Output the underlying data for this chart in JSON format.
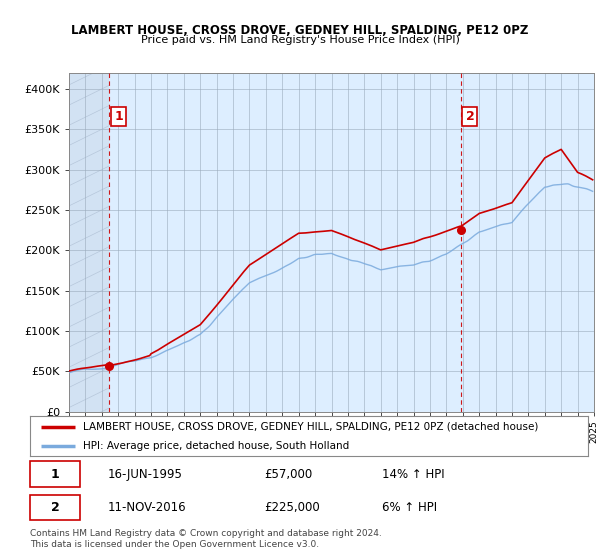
{
  "title1": "LAMBERT HOUSE, CROSS DROVE, GEDNEY HILL, SPALDING, PE12 0PZ",
  "title2": "Price paid vs. HM Land Registry's House Price Index (HPI)",
  "ylim": [
    0,
    420000
  ],
  "yticks": [
    0,
    50000,
    100000,
    150000,
    200000,
    250000,
    300000,
    350000,
    400000
  ],
  "ytick_labels": [
    "£0",
    "£50K",
    "£100K",
    "£150K",
    "£200K",
    "£250K",
    "£300K",
    "£350K",
    "£400K"
  ],
  "legend_line1": "LAMBERT HOUSE, CROSS DROVE, GEDNEY HILL, SPALDING, PE12 0PZ (detached house)",
  "legend_line2": "HPI: Average price, detached house, South Holland",
  "transaction1_date": "16-JUN-1995",
  "transaction1_price": "£57,000",
  "transaction1_hpi": "14% ↑ HPI",
  "transaction2_date": "11-NOV-2016",
  "transaction2_price": "£225,000",
  "transaction2_hpi": "6% ↑ HPI",
  "footer": "Contains HM Land Registry data © Crown copyright and database right 2024.\nThis data is licensed under the Open Government Licence v3.0.",
  "red_color": "#cc0000",
  "blue_color": "#7aaadd",
  "bg_color": "#ddeeff",
  "hatch_color": "#b8ccdd",
  "grid_color": "#aabbcc",
  "marker1_x": 1995.46,
  "marker1_y": 57000,
  "marker2_x": 2016.87,
  "marker2_y": 225000,
  "xmin": 1993,
  "xmax": 2025
}
